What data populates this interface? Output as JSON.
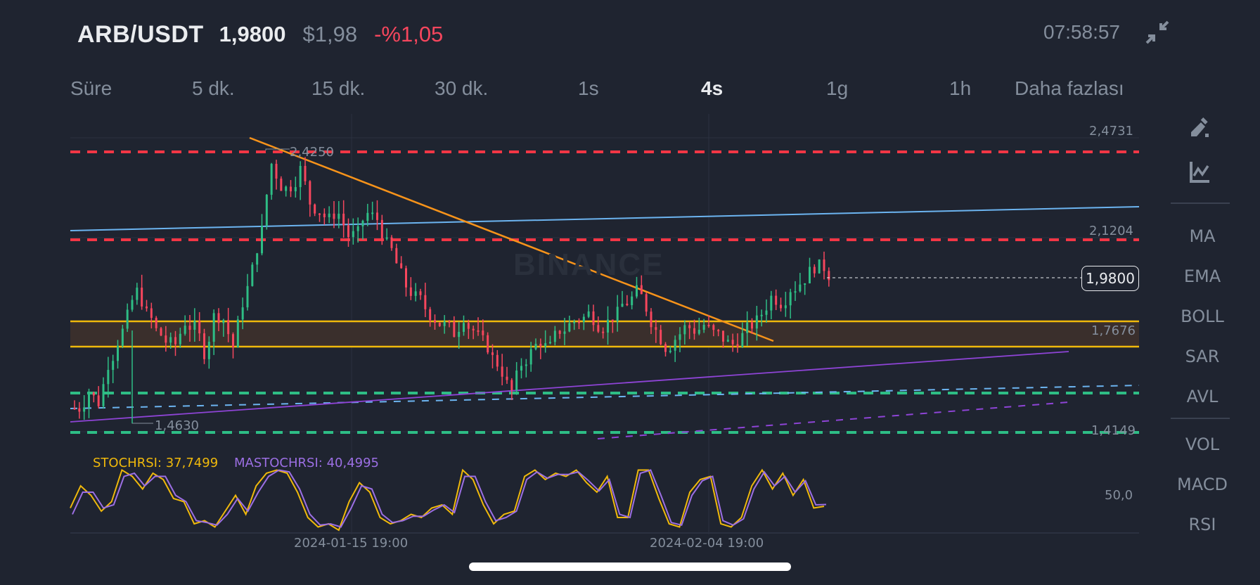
{
  "header": {
    "symbol": "ARB/USDT",
    "last_price": "1,9800",
    "usd_price": "$1,98",
    "change_pct": "-%1,05",
    "clock": "07:58:57",
    "collapse_icon": "collapse-arrows-icon"
  },
  "timeframes": [
    {
      "label": "Süre",
      "active": false
    },
    {
      "label": "5 dk.",
      "active": false
    },
    {
      "label": "15 dk.",
      "active": false
    },
    {
      "label": "30 dk.",
      "active": false
    },
    {
      "label": "1s",
      "active": false
    },
    {
      "label": "4s",
      "active": true
    },
    {
      "label": "1g",
      "active": false
    },
    {
      "label": "1h",
      "active": false
    },
    {
      "label": "Daha fazlası",
      "active": false
    }
  ],
  "sidebar": {
    "tools": [
      {
        "icon": "draw-pencil-icon"
      },
      {
        "icon": "chart-drawing-icon"
      }
    ],
    "main_indicators": [
      "MA",
      "EMA",
      "BOLL",
      "SAR",
      "AVL"
    ],
    "sub_indicators": [
      "VOL",
      "MACD",
      "RSI"
    ]
  },
  "price_axis": {
    "labels": [
      "2,4731",
      "2,1204",
      "1,7676",
      "1,4149"
    ],
    "current_price_tag": "1,9800",
    "high_marker": "2,4250",
    "low_marker": "1,4630"
  },
  "indicator": {
    "stochrsi_label": "STOCHRSI: 37,7499",
    "mastochrsi_label": "MASTOCHRSI: 40,4995",
    "axis_label": "50,0"
  },
  "time_axis": {
    "labels": [
      "2024-01-15 19:00",
      "2024-02-04 19:00"
    ]
  },
  "watermark": "BINANCE",
  "colors": {
    "background": "#1f2430",
    "up": "#2ebd85",
    "down": "#f6465d",
    "stochrsi": "#f0b90b",
    "mastochrsi": "#9c6fe4",
    "trend_orange": "#f7931a",
    "line_blue": "#6cb4f0",
    "line_purple": "#8e44d6",
    "zone_yellow": "#f0b90b"
  },
  "chart_data": [
    {
      "type": "candlestick",
      "title": "ARB/USDT 4s",
      "timeframe": "4s",
      "ylim": [
        1.38,
        2.5
      ],
      "y_ticks": [
        2.4731,
        2.1204,
        1.7676,
        1.4149
      ],
      "x_ticks": [
        "2024-01-15 19:00",
        "2024-02-04 19:00"
      ],
      "grid": true,
      "last_price": 1.98,
      "high": 2.425,
      "low": 1.463,
      "approx_close_path": [
        1.5,
        1.56,
        1.52,
        1.66,
        1.74,
        1.83,
        1.92,
        1.84,
        1.78,
        1.74,
        1.73,
        1.81,
        1.79,
        1.7,
        1.83,
        1.82,
        1.72,
        1.88,
        2.0,
        2.14,
        2.38,
        2.3,
        2.3,
        2.36,
        2.24,
        2.21,
        2.18,
        2.2,
        2.12,
        2.13,
        2.2,
        2.18,
        2.09,
        2.02,
        1.94,
        1.9,
        1.86,
        1.82,
        1.8,
        1.77,
        1.83,
        1.78,
        1.74,
        1.68,
        1.63,
        1.56,
        1.66,
        1.7,
        1.74,
        1.72,
        1.78,
        1.8,
        1.82,
        1.84,
        1.8,
        1.81,
        1.84,
        1.88,
        1.92,
        1.86,
        1.78,
        1.72,
        1.75,
        1.79,
        1.78,
        1.8,
        1.77,
        1.75,
        1.73,
        1.76,
        1.8,
        1.84,
        1.9,
        1.88,
        1.93,
        1.95,
        1.99,
        2.01,
        1.98
      ],
      "drawings": {
        "horizontal_red_dashed": [
          2.425,
          2.1204
        ],
        "horizontal_green_dashed": [
          1.54,
          1.4149
        ],
        "support_zone": [
          1.73,
          1.81
        ],
        "blue_trendline": {
          "from": 2.14,
          "to": 2.22
        },
        "orange_trendline": {
          "from": 2.47,
          "to": 1.72
        },
        "purple_trendline": {
          "from": 1.46,
          "to": 1.7
        },
        "blue_dashed_trendline": {
          "from": 1.5,
          "to": 1.56
        },
        "purple_dashed_trendline": {
          "from": 1.4,
          "to": 1.51
        }
      }
    },
    {
      "type": "line",
      "title": "Stochastic RSI",
      "ylim": [
        0,
        100
      ],
      "y_ticks": [
        50.0
      ],
      "series": [
        {
          "name": "STOCHRSI",
          "last": 37.7499,
          "values": [
            35,
            70,
            55,
            30,
            45,
            95,
            85,
            65,
            90,
            80,
            50,
            45,
            10,
            15,
            5,
            30,
            55,
            25,
            70,
            90,
            95,
            90,
            60,
            20,
            5,
            10,
            0,
            45,
            75,
            60,
            20,
            10,
            15,
            25,
            20,
            35,
            40,
            25,
            95,
            80,
            40,
            10,
            25,
            30,
            85,
            95,
            80,
            90,
            85,
            95,
            75,
            60,
            85,
            20,
            20,
            95,
            95,
            50,
            10,
            5,
            60,
            80,
            85,
            10,
            5,
            20,
            70,
            95,
            65,
            90,
            55,
            80,
            35,
            37.7
          ]
        },
        {
          "name": "MASTOCHRSI",
          "last": 40.4995,
          "values": [
            25,
            60,
            60,
            35,
            40,
            85,
            90,
            70,
            85,
            85,
            55,
            45,
            15,
            12,
            8,
            25,
            50,
            30,
            60,
            85,
            95,
            92,
            65,
            25,
            8,
            10,
            5,
            35,
            70,
            65,
            25,
            12,
            15,
            22,
            22,
            32,
            40,
            28,
            85,
            85,
            45,
            15,
            20,
            30,
            80,
            92,
            82,
            88,
            88,
            92,
            78,
            62,
            80,
            25,
            20,
            90,
            95,
            55,
            12,
            8,
            55,
            78,
            85,
            15,
            8,
            18,
            65,
            92,
            70,
            85,
            60,
            78,
            40,
            40.5
          ]
        }
      ]
    }
  ]
}
